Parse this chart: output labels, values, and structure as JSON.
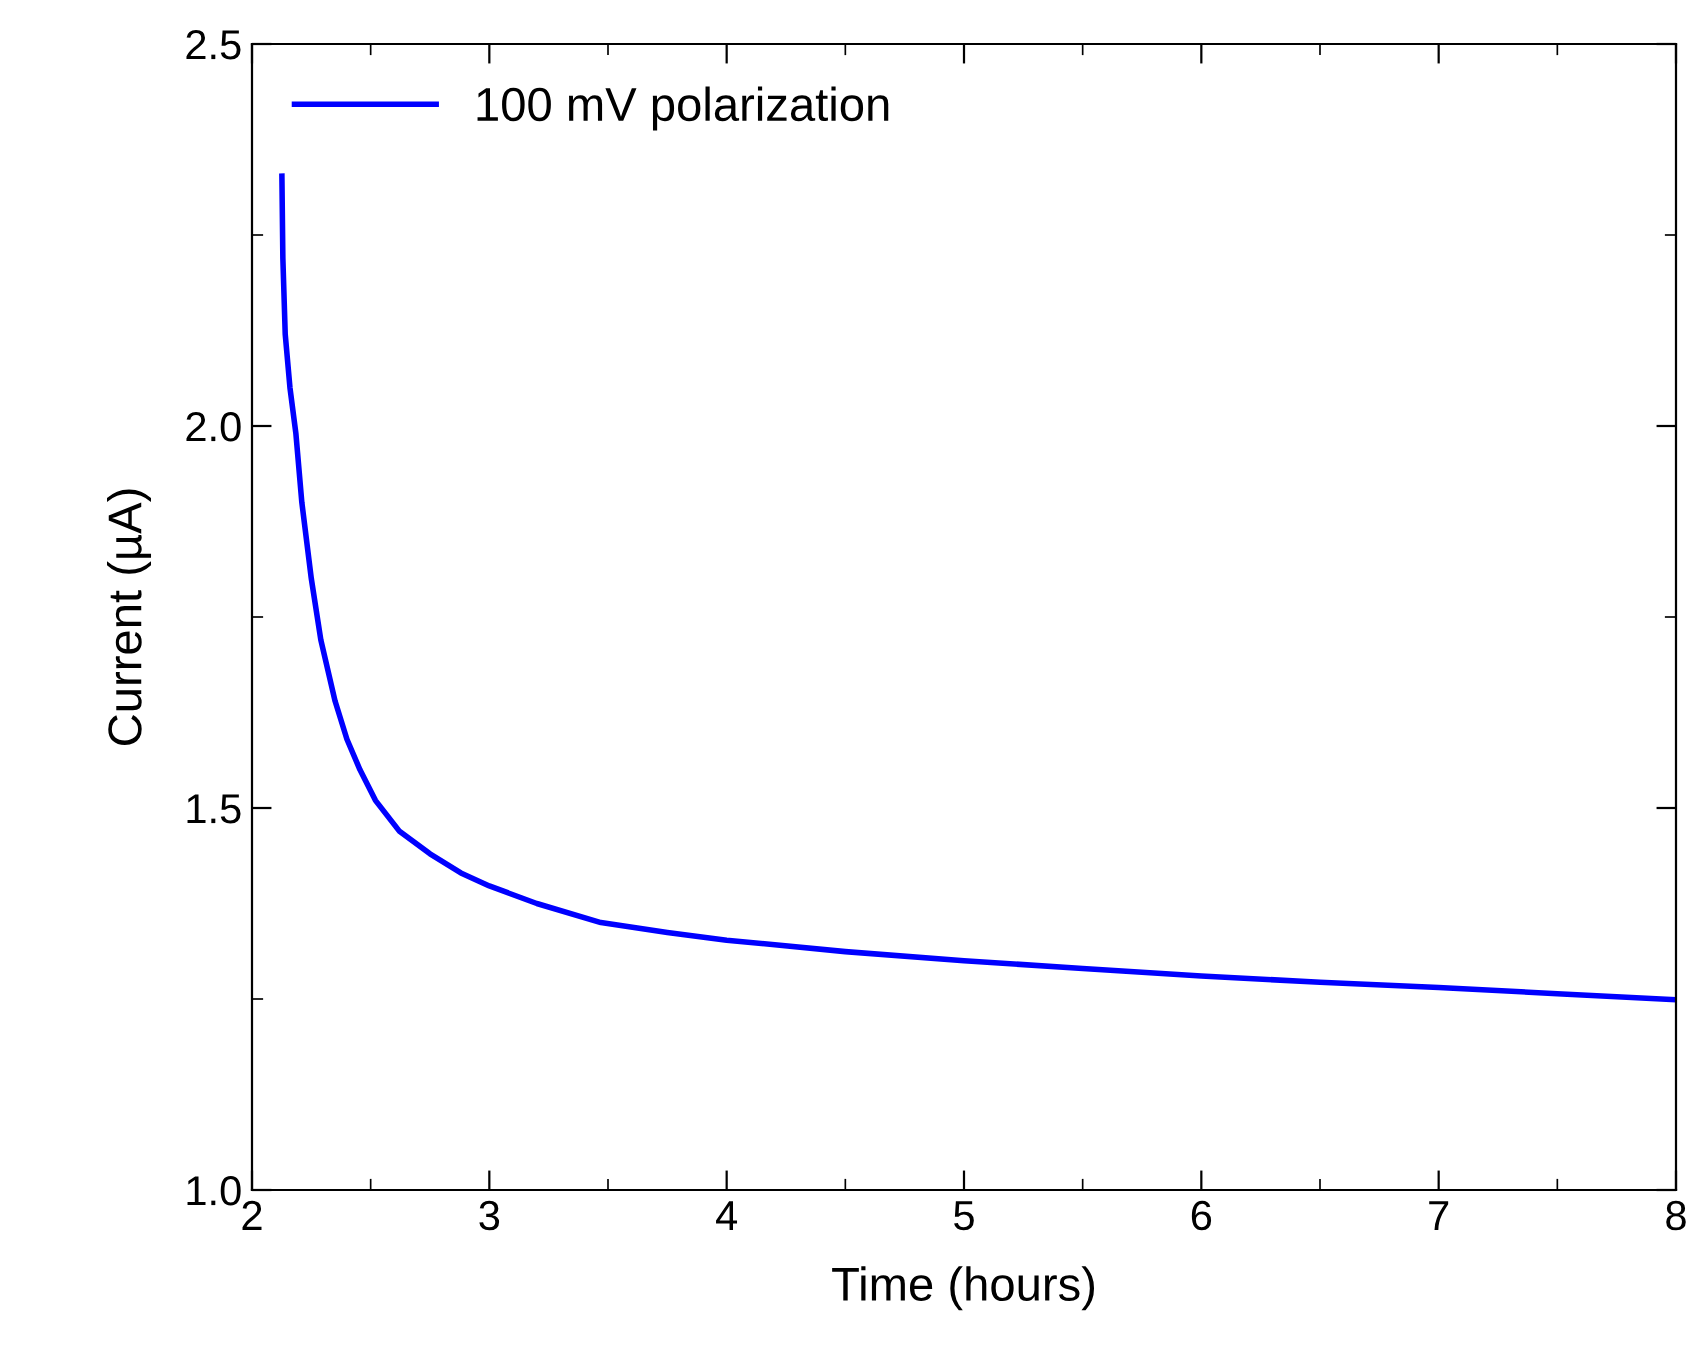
{
  "chart_data": {
    "type": "line",
    "xlabel": "Time (hours)",
    "ylabel": "Current (µA)",
    "x": [
      2.126,
      2.13,
      2.14,
      2.16,
      2.185,
      2.21,
      2.25,
      2.29,
      2.35,
      2.4,
      2.455,
      2.52,
      2.62,
      2.75,
      2.88,
      3.0,
      3.2,
      3.47,
      3.75,
      4.0,
      4.5,
      5.0,
      5.5,
      6.0,
      6.5,
      7.0,
      7.5,
      8.0
    ],
    "series": [
      {
        "name": "100 mV polarization",
        "color": "#0000ff",
        "values": [
          2.327,
          2.22,
          2.12,
          2.05,
          1.99,
          1.9,
          1.8,
          1.72,
          1.64,
          1.59,
          1.55,
          1.51,
          1.47,
          1.44,
          1.415,
          1.398,
          1.375,
          1.35,
          1.337,
          1.327,
          1.312,
          1.3,
          1.29,
          1.28,
          1.272,
          1.265,
          1.257,
          1.249
        ]
      }
    ],
    "xlim": [
      2,
      8
    ],
    "ylim": [
      1.0,
      2.5
    ],
    "xticks": [
      2,
      {
        "value": 2.5,
        "label": null
      },
      3,
      {
        "value": 3.5,
        "label": null
      },
      4,
      {
        "value": 4.5,
        "label": null
      },
      5,
      {
        "value": 5.5,
        "label": null
      },
      6,
      {
        "value": 6.5,
        "label": null
      },
      7,
      {
        "value": 7.5,
        "label": null
      },
      8
    ],
    "yticks": [
      {
        "value": 1.0,
        "label": "1.0"
      },
      {
        "value": 1.25,
        "label": null
      },
      {
        "value": 1.5,
        "label": "1.5"
      },
      {
        "value": 1.75,
        "label": null
      },
      {
        "value": 2.0,
        "label": "2.0"
      },
      {
        "value": 2.25,
        "label": null
      },
      {
        "value": 2.5,
        "label": "2.5"
      }
    ],
    "legend": "top left",
    "grid": false,
    "marker": "none",
    "line_style": "solid"
  }
}
